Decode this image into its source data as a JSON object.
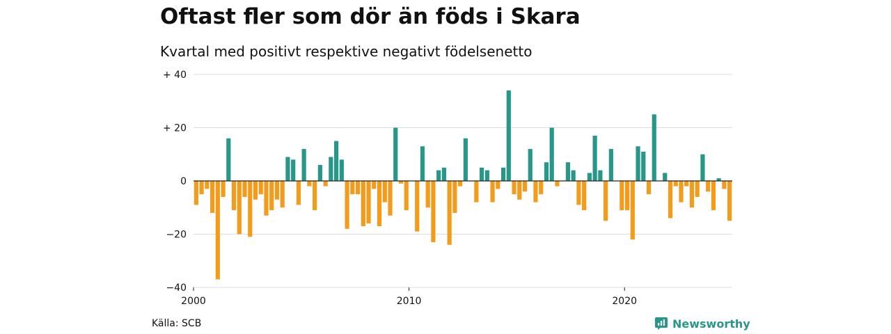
{
  "chart_data": {
    "type": "bar",
    "title": "Oftast fler som dör än föds i Skara",
    "subtitle": "Kvartal med positivt respektive negativt födelsenetto",
    "xlabel": "",
    "ylabel": "",
    "ylim": [
      -40,
      40
    ],
    "yticks": [
      40,
      20,
      0,
      -20,
      -40
    ],
    "ytick_labels": [
      "+ 40",
      "+ 20",
      "0",
      "−20",
      "−40"
    ],
    "xticks": [
      2000,
      2010,
      2020
    ],
    "xtick_labels": [
      "2000",
      "2010",
      "2020"
    ],
    "x_start": 2000,
    "quarters_per_year": 4,
    "grid": true,
    "colors": {
      "positive": "#27978a",
      "negative": "#f39c1b"
    },
    "values": [
      -9,
      -5,
      -3,
      -12,
      -37,
      -6,
      16,
      -11,
      -20,
      -6,
      -21,
      -7,
      -5,
      -13,
      -11,
      -7,
      -10,
      9,
      8,
      -9,
      12,
      -2,
      -11,
      6,
      -2,
      9,
      15,
      8,
      -18,
      -5,
      -5,
      -17,
      -16,
      -3,
      -17,
      -8,
      -13,
      20,
      -1,
      -11,
      0,
      -19,
      13,
      -10,
      -23,
      4,
      5,
      -24,
      -12,
      -2,
      16,
      0,
      -8,
      5,
      4,
      -8,
      -3,
      5,
      34,
      -5,
      -7,
      -4,
      12,
      -8,
      -5,
      7,
      20,
      -2,
      0,
      7,
      4,
      -9,
      -11,
      3,
      17,
      4,
      -15,
      12,
      0,
      -11,
      -11,
      -22,
      13,
      11,
      -5,
      25,
      0,
      3,
      -14,
      -2,
      -8,
      -2,
      -10,
      -6,
      10,
      -4,
      -11,
      1,
      -3,
      -15
    ]
  },
  "footer": {
    "source": "Källa: SCB",
    "brand": "Newsworthy"
  }
}
